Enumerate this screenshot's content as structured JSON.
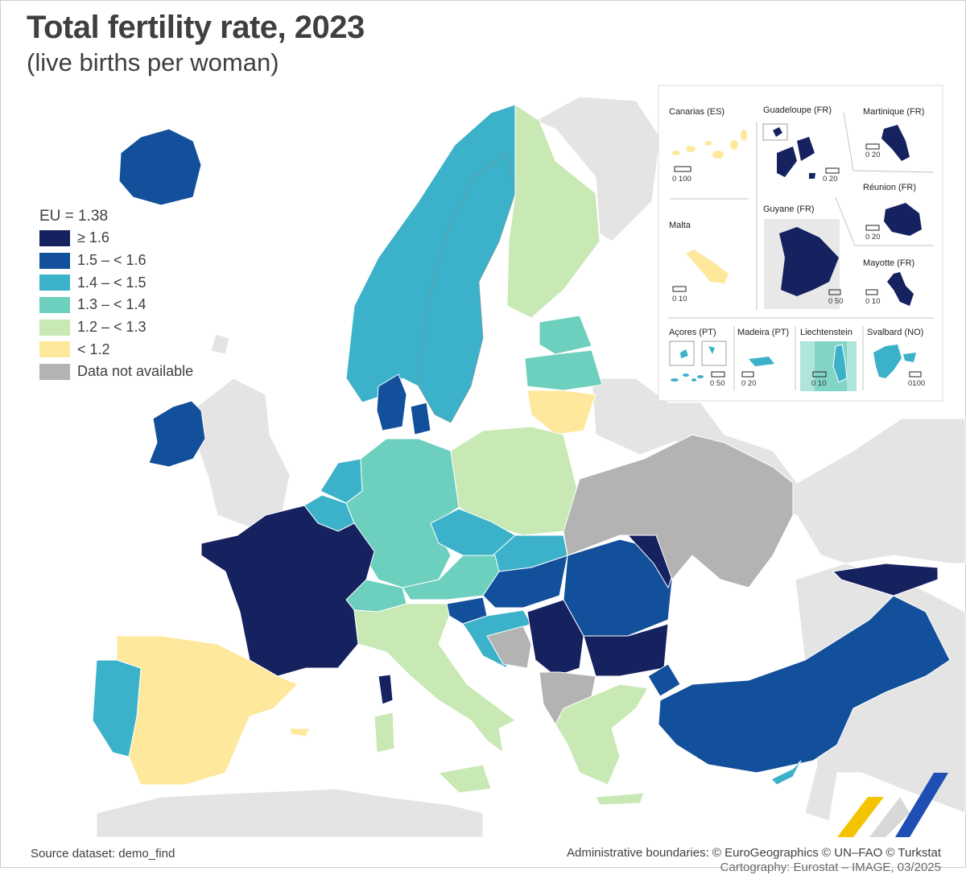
{
  "title": "Total fertility rate, 2023",
  "subtitle": "(live births per woman)",
  "legend": {
    "title": "EU = 1.38",
    "items": [
      {
        "label": "≥ 1.6",
        "color": "#16215f"
      },
      {
        "label": "1.5 – < 1.6",
        "color": "#13509b"
      },
      {
        "label": "1.4 – < 1.5",
        "color": "#3bb2c9"
      },
      {
        "label": "1.3 – < 1.4",
        "color": "#6dcfbd"
      },
      {
        "label": "1.2 – < 1.3",
        "color": "#c8e8b4"
      },
      {
        "label": "< 1.2",
        "color": "#fde89b"
      },
      {
        "label": "Data not available",
        "color": "#b3b3b3"
      }
    ]
  },
  "colors": {
    "sea": "#ffffff",
    "other_land": "#e4e4e4",
    "border": "#8c8c8c"
  },
  "insets": {
    "canarias": "Canarias (ES)",
    "guadeloupe": "Guadeloupe (FR)",
    "martinique": "Martinique (FR)",
    "reunion": "Réunion (FR)",
    "malta": "Malta",
    "guyane": "Guyane (FR)",
    "mayotte": "Mayotte (FR)",
    "acores": "Açores (PT)",
    "madeira": "Madeira (PT)",
    "liechtenstein": "Liechtenstein",
    "svalbard": "Svalbard (NO)"
  },
  "scales": {
    "canarias": "0   100",
    "guadeloupe": "0  20",
    "martinique": "0  20",
    "reunion": "0  20",
    "malta": "0  10",
    "guyane": "0 50",
    "mayotte": "0 10",
    "acores": "0  50",
    "madeira": "0 20",
    "liechtenstein": "0  10",
    "svalbard": "0100"
  },
  "footer": {
    "source": "Source dataset: demo_find",
    "credits": "Administrative boundaries: © EuroGeographics © UN–FAO © Turkstat",
    "credits_second": "Cartography: Eurostat – IMAGE, 03/2025"
  },
  "logo": {
    "colors": [
      "#f5c400",
      "#1f4fb4"
    ]
  }
}
